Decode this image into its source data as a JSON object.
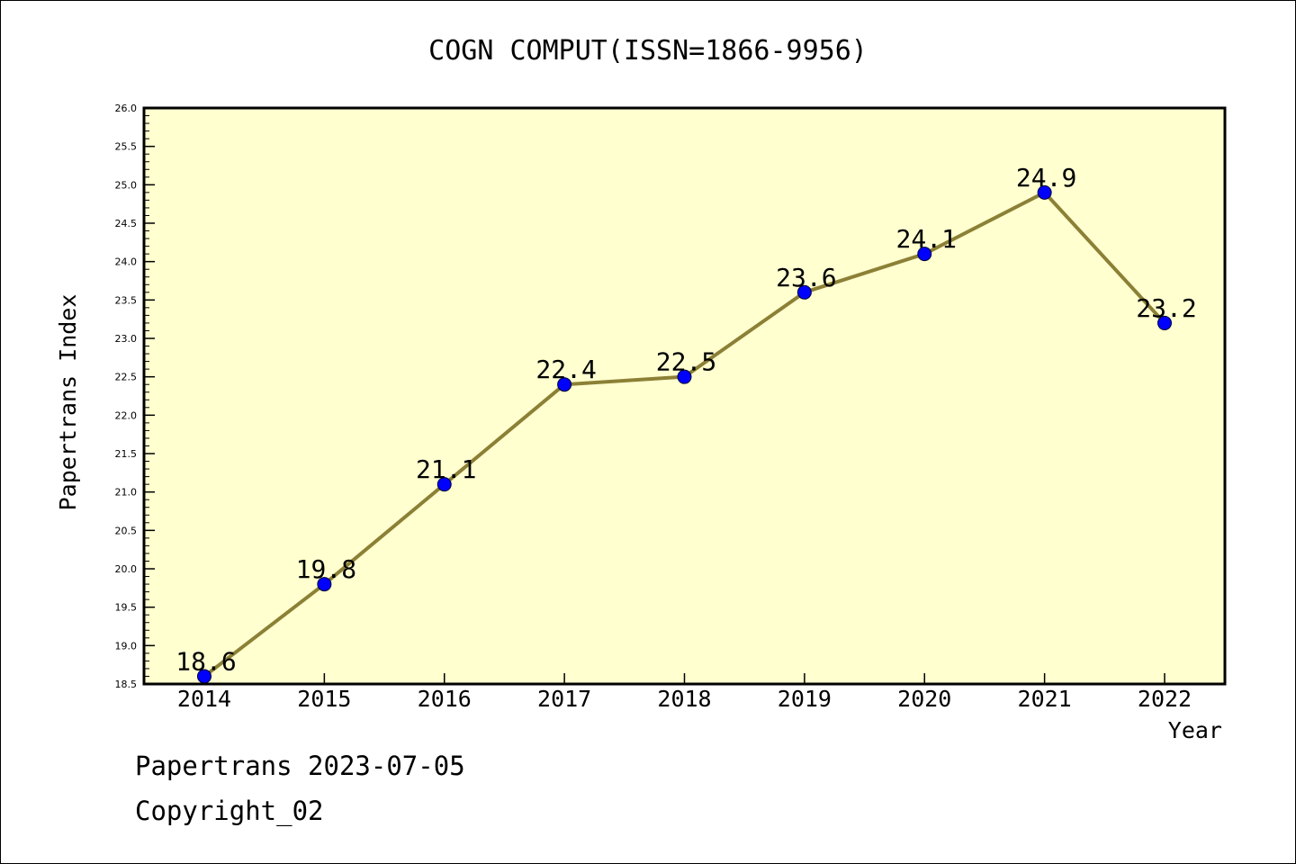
{
  "chart_data": {
    "type": "line",
    "title": "COGN COMPUT(ISSN=1866-9956)",
    "xlabel": "Year",
    "ylabel": "Papertrans Index",
    "categories": [
      "2014",
      "2015",
      "2016",
      "2017",
      "2018",
      "2019",
      "2020",
      "2021",
      "2022"
    ],
    "values": [
      18.6,
      19.8,
      21.1,
      22.4,
      22.5,
      23.6,
      24.1,
      24.9,
      23.2
    ],
    "data_labels": [
      "18.6",
      "19.8",
      "21.1",
      "22.4",
      "22.5",
      "23.6",
      "24.1",
      "24.9",
      "23.2"
    ],
    "ylim": [
      18.5,
      26.0
    ],
    "yticks": [
      "18.5",
      "19.0",
      "19.5",
      "20.0",
      "20.5",
      "21.0",
      "21.5",
      "22.0",
      "22.5",
      "23.0",
      "23.5",
      "24.0",
      "24.5",
      "25.0",
      "25.5",
      "26.0"
    ],
    "grid": false,
    "legend": "none",
    "colors": {
      "plot_background": "#ffffd0",
      "line": "#8b8035",
      "marker": "#0000ff"
    }
  },
  "footer": {
    "date_line": "Papertrans 2023-07-05",
    "copyright": "Copyright_02"
  }
}
